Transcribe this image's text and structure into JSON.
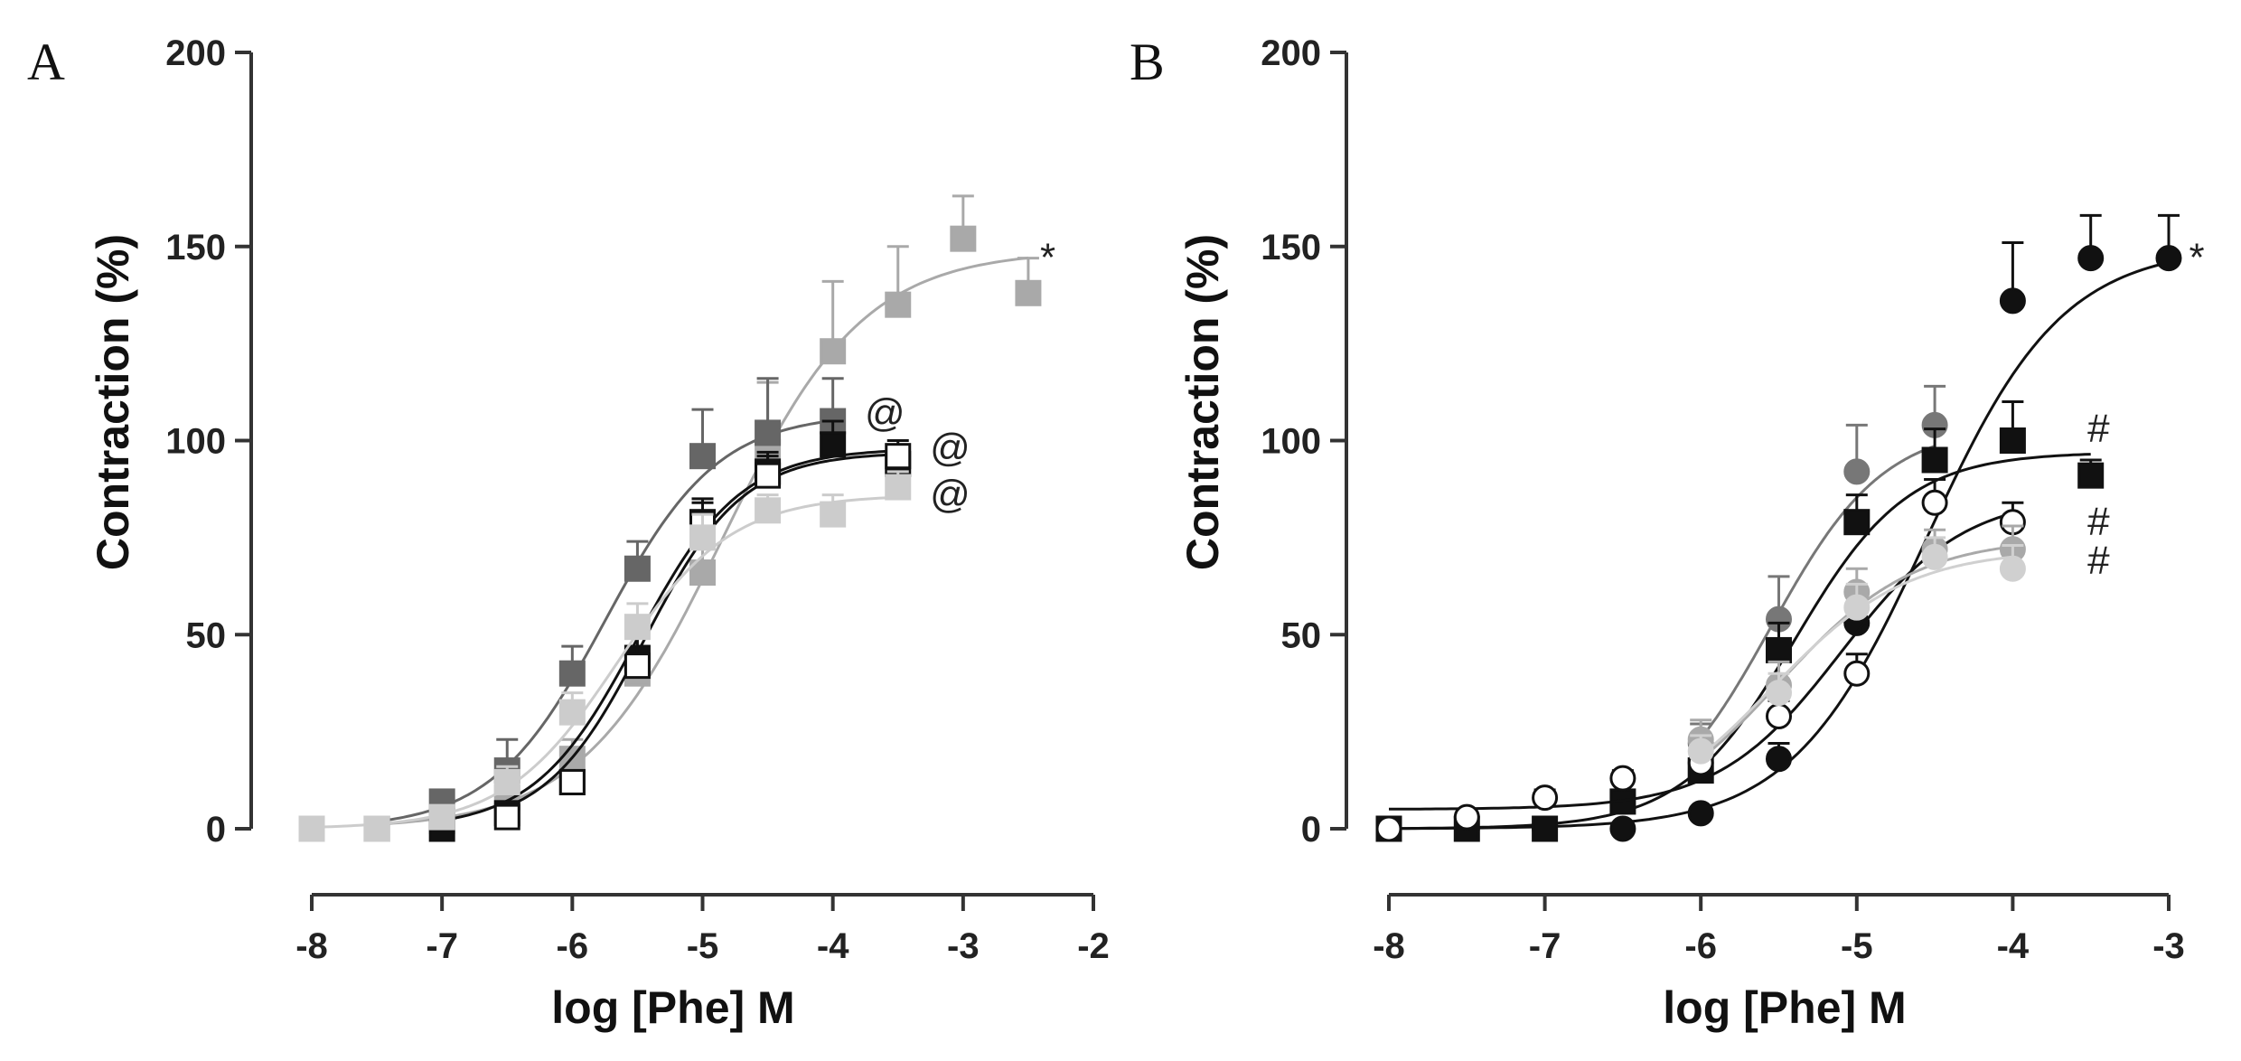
{
  "chart_data": [
    {
      "panel": "A",
      "type": "scatter",
      "xlabel": "log [Phe] M",
      "ylabel": "Contraction (%)",
      "xlim": [
        -8,
        -2
      ],
      "ylim": [
        0,
        200
      ],
      "xticks": [
        "-8",
        "-7",
        "-6",
        "-5",
        "-4",
        "-3",
        "-2"
      ],
      "yticks": [
        "0",
        "50",
        "100",
        "150",
        "200"
      ],
      "series": [
        {
          "name": "light grey square",
          "color": "#a9a9a9",
          "marker": "square",
          "fill": true,
          "x": [
            -7.5,
            -7,
            -6.5,
            -6,
            -5.5,
            -5,
            -4.5,
            -4,
            -3.5,
            -3,
            -2.5
          ],
          "y": [
            0,
            2,
            8,
            18,
            40,
            66,
            97,
            123,
            135,
            152,
            138
          ],
          "err": [
            0,
            2,
            4,
            5,
            7,
            11,
            18,
            18,
            15,
            11,
            9
          ],
          "fit": {
            "bottom": 0,
            "top": 149,
            "logEC50": -4.85,
            "hill": 0.8
          }
        },
        {
          "name": "dark grey square",
          "color": "#666666",
          "marker": "square",
          "fill": true,
          "x": [
            -7.5,
            -7,
            -6.5,
            -6,
            -5.5,
            -5,
            -4.5,
            -4
          ],
          "y": [
            0,
            7,
            15,
            40,
            67,
            96,
            102,
            105
          ],
          "err": [
            0,
            2,
            8,
            7,
            7,
            12,
            14,
            11
          ],
          "fit": {
            "bottom": 0,
            "top": 107,
            "logEC50": -5.75,
            "hill": 1.0
          }
        },
        {
          "name": "black square",
          "color": "#111111",
          "marker": "square",
          "fill": true,
          "x": [
            -7,
            -6.5,
            -6,
            -5.5,
            -5,
            -4.5,
            -4,
            -3.5
          ],
          "y": [
            0,
            4,
            12,
            44,
            79,
            92,
            99,
            94
          ],
          "err": [
            0,
            2,
            3,
            5,
            6,
            5,
            6,
            4
          ],
          "fit": {
            "bottom": 0,
            "top": 98,
            "logEC50": -5.5,
            "hill": 1.1
          }
        },
        {
          "name": "open square",
          "color": "#111111",
          "marker": "square",
          "fill": false,
          "x": [
            -6.5,
            -6,
            -5.5,
            -5,
            -4.5,
            -3.5
          ],
          "y": [
            3,
            12,
            42,
            78,
            91,
            96
          ],
          "err": [
            0,
            3,
            5,
            6,
            5,
            4
          ],
          "fit": {
            "bottom": 0,
            "top": 97,
            "logEC50": -5.45,
            "hill": 1.15
          }
        },
        {
          "name": "pale grey square",
          "color": "#cccccc",
          "marker": "square",
          "fill": true,
          "x": [
            -8,
            -7.5,
            -7,
            -6.5,
            -6,
            -5.5,
            -5,
            -4.5,
            -4,
            -3.5
          ],
          "y": [
            0,
            0,
            3,
            12,
            30,
            52,
            75,
            82,
            81,
            88
          ],
          "err": [
            0,
            0,
            2,
            4,
            5,
            6,
            6,
            4,
            5,
            4
          ],
          "fit": {
            "bottom": 0,
            "top": 86,
            "logEC50": -5.65,
            "hill": 1.0
          }
        }
      ],
      "annotations": [
        {
          "text": "*",
          "x": -2.35,
          "y": 147
        },
        {
          "text": "@",
          "x": -3.6,
          "y": 107
        },
        {
          "text": "@",
          "x": -3.1,
          "y": 98
        },
        {
          "text": "@",
          "x": -3.1,
          "y": 86
        }
      ]
    },
    {
      "panel": "B",
      "type": "scatter",
      "xlabel": "log [Phe] M",
      "ylabel": "Contraction (%)",
      "xlim": [
        -8,
        -3
      ],
      "ylim": [
        0,
        200
      ],
      "xticks": [
        "-8",
        "-7",
        "-6",
        "-5",
        "-4",
        "-3"
      ],
      "yticks": [
        "0",
        "50",
        "100",
        "150",
        "200"
      ],
      "series": [
        {
          "name": "black circle",
          "color": "#111111",
          "marker": "circle",
          "fill": true,
          "x": [
            -8,
            -7.5,
            -7,
            -6.5,
            -6,
            -5.5,
            -5,
            -4,
            -3.5,
            -3
          ],
          "y": [
            0,
            0,
            0,
            0,
            4,
            18,
            53,
            136,
            147,
            147
          ],
          "err": [
            0,
            0,
            0,
            0,
            1,
            4,
            5,
            15,
            11,
            11
          ],
          "fit": {
            "bottom": 0,
            "top": 150,
            "logEC50": -4.55,
            "hill": 1.0
          }
        },
        {
          "name": "dark grey circle",
          "color": "#777777",
          "marker": "circle",
          "fill": true,
          "x": [
            -6,
            -5.5,
            -5,
            -4.5
          ],
          "y": [
            22,
            54,
            92,
            104
          ],
          "err": [
            5,
            11,
            12,
            10
          ],
          "fit": {
            "bottom": 0,
            "top": 104,
            "logEC50": -5.55,
            "hill": 1.2
          }
        },
        {
          "name": "black square",
          "color": "#111111",
          "marker": "square",
          "fill": true,
          "x": [
            -8,
            -7.5,
            -7,
            -6.5,
            -6,
            -5.5,
            -5,
            -4.5,
            -4,
            -3.5
          ],
          "y": [
            0,
            0,
            0,
            7,
            15,
            46,
            79,
            95,
            100,
            91
          ],
          "err": [
            0,
            0,
            0,
            2,
            3,
            7,
            7,
            8,
            10,
            4
          ],
          "fit": {
            "bottom": 0,
            "top": 97,
            "logEC50": -5.4,
            "hill": 1.2
          }
        },
        {
          "name": "open circle",
          "color": "#111111",
          "marker": "circle",
          "fill": false,
          "x": [
            -8,
            -7.5,
            -7,
            -6.5,
            -6,
            -5.5,
            -5,
            -4.5,
            -4
          ],
          "y": [
            0,
            3,
            8,
            13,
            17,
            29,
            40,
            84,
            79
          ],
          "err": [
            0,
            1,
            2,
            2,
            3,
            4,
            5,
            6,
            5
          ],
          "fit": {
            "bottom": 5,
            "top": 86,
            "logEC50": -5.1,
            "hill": 1.1
          }
        },
        {
          "name": "light grey circle",
          "color": "#a9a9a9",
          "marker": "circle",
          "fill": true,
          "x": [
            -6,
            -5.5,
            -5,
            -4.5,
            -4
          ],
          "y": [
            23,
            37,
            61,
            72,
            72
          ],
          "err": [
            5,
            6,
            6,
            5,
            6
          ],
          "fit": {
            "bottom": 0,
            "top": 75,
            "logEC50": -5.5,
            "hill": 1.0
          }
        },
        {
          "name": "pale grey circle",
          "color": "#d0d0d0",
          "marker": "circle",
          "fill": true,
          "x": [
            -6,
            -5.5,
            -5,
            -4.5,
            -4
          ],
          "y": [
            20,
            35,
            57,
            70,
            67
          ],
          "err": [
            4,
            5,
            6,
            5,
            6
          ],
          "fit": {
            "bottom": 0,
            "top": 72,
            "logEC50": -5.55,
            "hill": 1.0
          }
        }
      ],
      "annotations": [
        {
          "text": "*",
          "x": -2.82,
          "y": 147
        },
        {
          "text": "#",
          "x": -3.45,
          "y": 103
        },
        {
          "text": "#",
          "x": -3.45,
          "y": 79
        },
        {
          "text": "#",
          "x": -3.45,
          "y": 69
        }
      ]
    }
  ]
}
